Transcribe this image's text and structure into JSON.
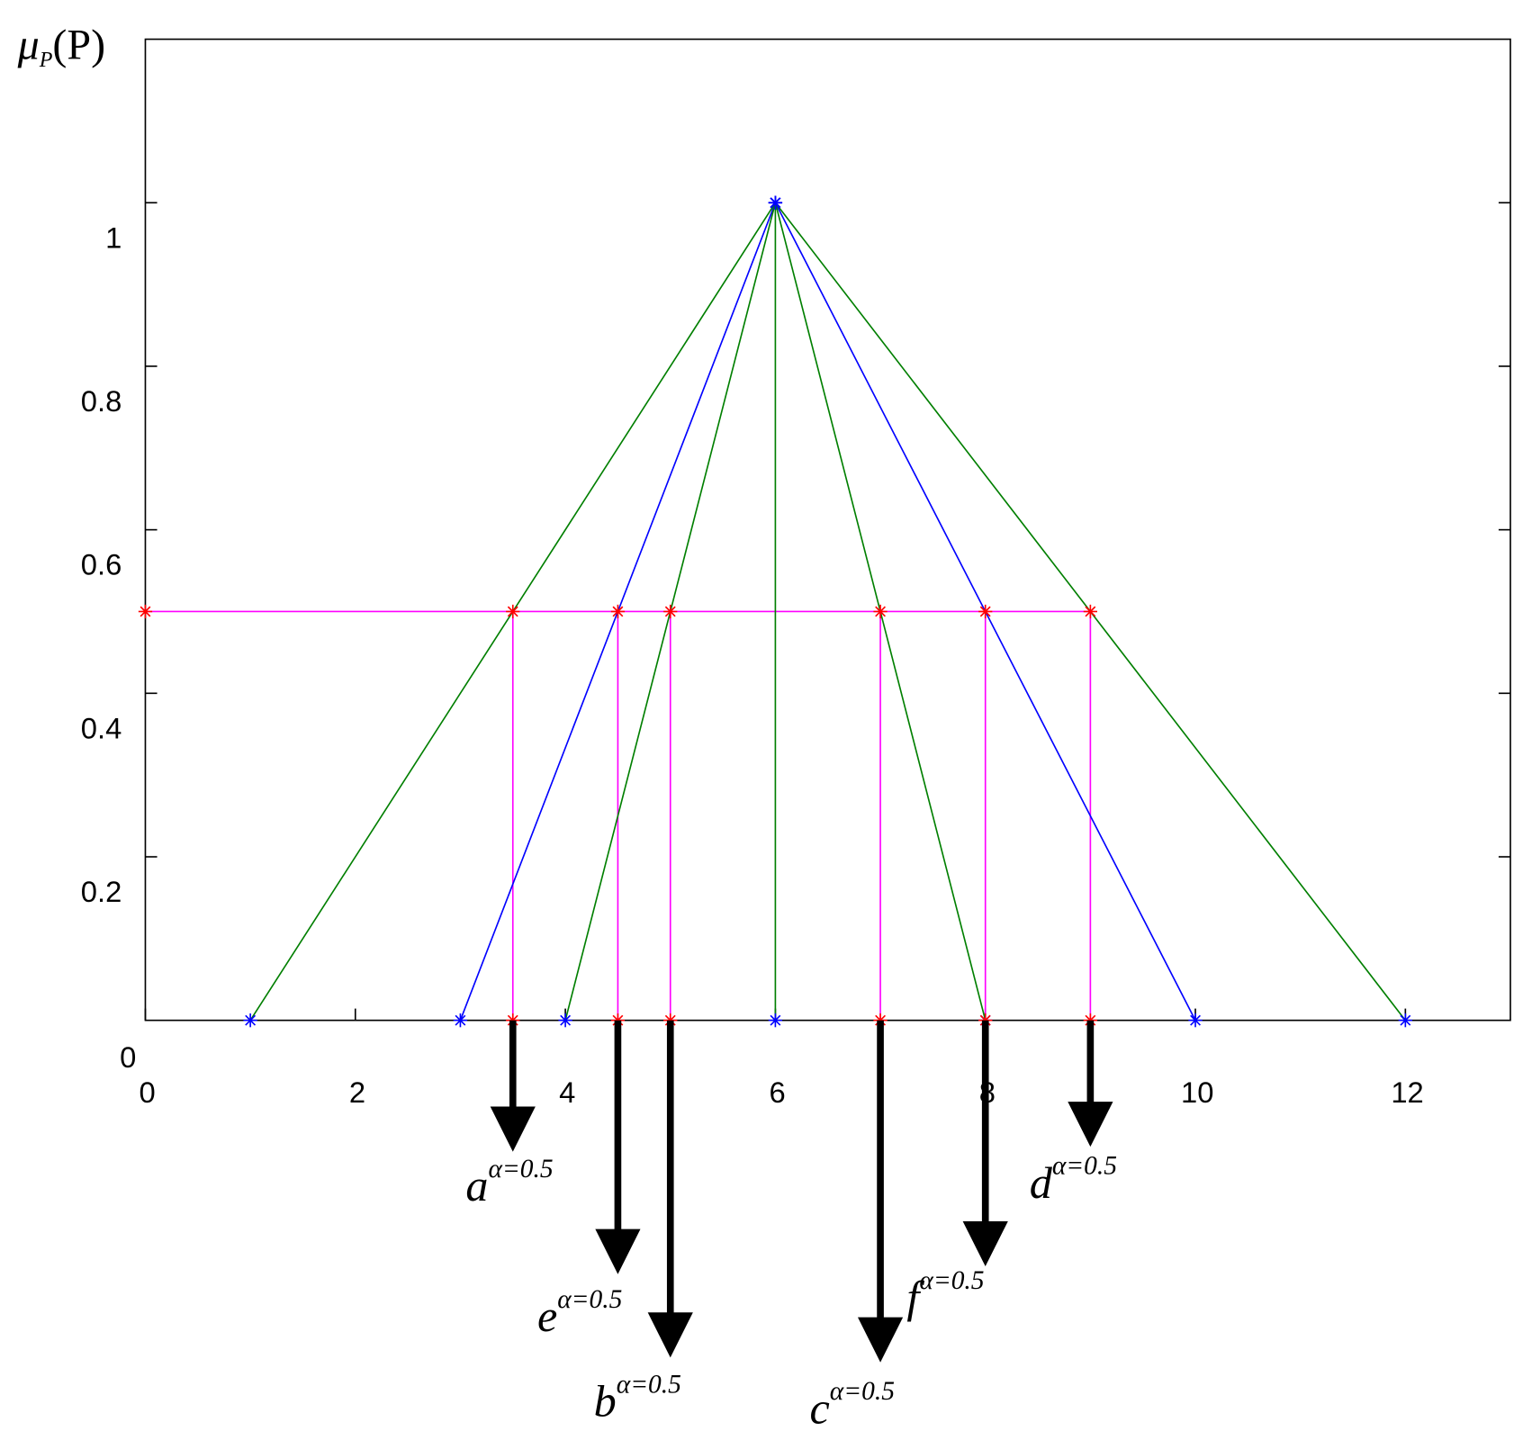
{
  "chart_data": {
    "type": "line",
    "ylabel": {
      "main": "μ",
      "sub": "P",
      "rest": "(P)"
    },
    "xlim": [
      0,
      13
    ],
    "ylim": [
      0,
      1.2
    ],
    "xticks": [
      0,
      2,
      4,
      6,
      8,
      10,
      12
    ],
    "yticks": [
      0,
      0.2,
      0.4,
      0.6,
      0.8,
      1
    ],
    "series": [
      {
        "color": "#007f00",
        "x": [
          1,
          6,
          12
        ],
        "values": [
          0,
          1,
          0
        ]
      },
      {
        "color": "#0000ff",
        "x": [
          3,
          6,
          10
        ],
        "values": [
          0,
          1,
          0
        ]
      },
      {
        "color": "#007f00",
        "x": [
          4,
          6,
          8
        ],
        "values": [
          0,
          1,
          0
        ]
      },
      {
        "color": "#007f00",
        "x": [
          6,
          6
        ],
        "values": [
          0,
          1
        ]
      }
    ],
    "marker_color": "#0000ff",
    "cut_level": 0.5,
    "cut_color": "#ff00ff",
    "cut_marker_color": "#ff0000",
    "cuts": [
      {
        "x": 3.5,
        "letter": "a",
        "sup": "α=0.5"
      },
      {
        "x": 4.5,
        "letter": "e",
        "sup": "α=0.5"
      },
      {
        "x": 5,
        "letter": "b",
        "sup": "α=0.5"
      },
      {
        "x": 7,
        "letter": "c",
        "sup": "α=0.5"
      },
      {
        "x": 8,
        "letter": "f",
        "sup": "α=0.5"
      },
      {
        "x": 9,
        "letter": "d",
        "sup": "α=0.5"
      }
    ]
  }
}
